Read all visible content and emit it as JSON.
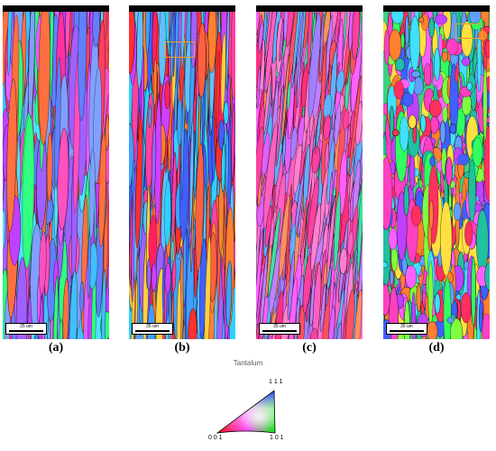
{
  "panels": [
    {
      "id": "a",
      "label": "(a)",
      "scale_text": "35 um",
      "roi": false
    },
    {
      "id": "b",
      "label": "(b)",
      "scale_text": "35 um",
      "roi": true
    },
    {
      "id": "c",
      "label": "(c)",
      "scale_text": "35 um",
      "roi": false
    },
    {
      "id": "d",
      "label": "(d)",
      "scale_text": "35 um",
      "roi": true
    }
  ],
  "legend": {
    "material": "Tantalum",
    "corner_111": "1 1 1",
    "corner_001": "0 0 1",
    "corner_101": "1 0 1"
  },
  "colors": {
    "red_001": "#ff2020",
    "green_101": "#20e020",
    "blue_111": "#2020ff",
    "roi_box": "#f0a020",
    "boundary": "#000000"
  }
}
